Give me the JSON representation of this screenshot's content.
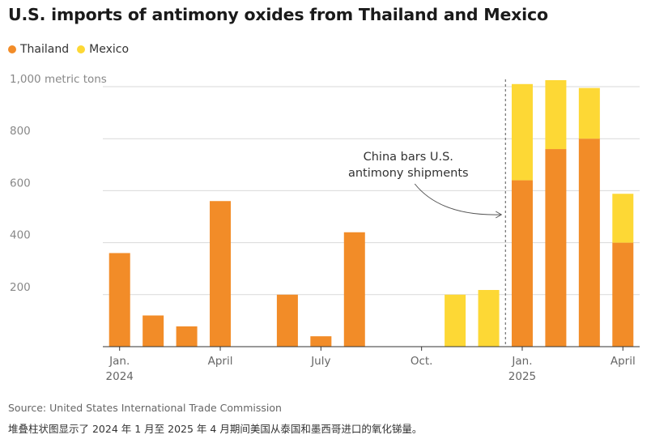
{
  "chart_data": {
    "type": "bar",
    "stacked": true,
    "title": "U.S. imports of antimony oxides from Thailand and Mexico",
    "ylabel": "1,000 metric tons",
    "ylim": [
      0,
      1000
    ],
    "yticks": [
      200,
      400,
      600,
      800,
      1000
    ],
    "ytick_labels": [
      "200",
      "400",
      "600",
      "800",
      "1,000 metric tons"
    ],
    "grid": true,
    "legend_position": "top-left",
    "categories": [
      "Jan. 2024",
      "Feb. 2024",
      "Mar. 2024",
      "Apr. 2024",
      "May 2024",
      "Jun. 2024",
      "Jul. 2024",
      "Aug. 2024",
      "Sep. 2024",
      "Oct. 2024",
      "Nov. 2024",
      "Dec. 2024",
      "Jan. 2025",
      "Feb. 2025",
      "Mar. 2025",
      "Apr. 2025"
    ],
    "x_tick_labels": [
      {
        "index": 0,
        "line1": "Jan.",
        "line2": "2024"
      },
      {
        "index": 3,
        "line1": "April",
        "line2": ""
      },
      {
        "index": 6,
        "line1": "July",
        "line2": ""
      },
      {
        "index": 9,
        "line1": "Oct.",
        "line2": ""
      },
      {
        "index": 12,
        "line1": "Jan.",
        "line2": "2025"
      },
      {
        "index": 15,
        "line1": "April",
        "line2": ""
      }
    ],
    "series": [
      {
        "name": "Thailand",
        "color": "#f28c28",
        "values": [
          360,
          120,
          78,
          560,
          0,
          200,
          40,
          440,
          0,
          0,
          0,
          0,
          640,
          760,
          800,
          400
        ]
      },
      {
        "name": "Mexico",
        "color": "#fdd835",
        "values": [
          0,
          0,
          0,
          0,
          0,
          0,
          0,
          0,
          0,
          0,
          200,
          218,
          370,
          265,
          195,
          188
        ]
      }
    ],
    "annotation": {
      "lines": [
        "China bars U.S.",
        "antimony shipments"
      ],
      "marker_between": [
        11,
        12
      ]
    }
  },
  "source": "Source: United States International Trade Commission",
  "description": "堆叠柱状图显示了 2024 年 1 月至 2025 年 4 月期间美国从泰国和墨西哥进口的氧化锑量。"
}
